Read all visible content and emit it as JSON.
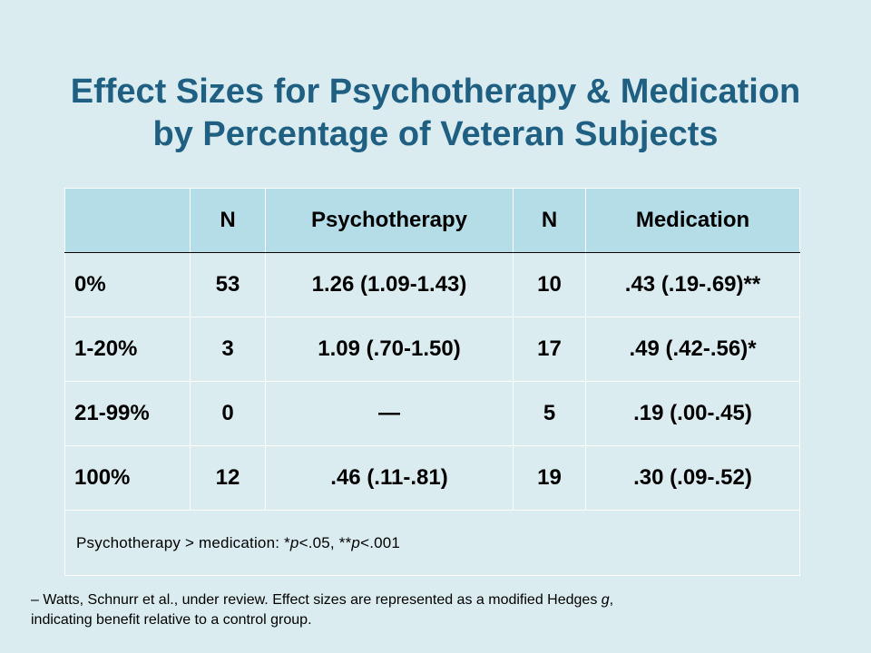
{
  "title": {
    "line1": "Effect Sizes for Psychotherapy & Medication",
    "line2": "by Percentage of Veteran Subjects"
  },
  "table": {
    "headers": [
      "",
      "N",
      "Psychotherapy",
      "N",
      "Medication"
    ],
    "rows": [
      [
        "0%",
        "53",
        "1.26 (1.09-1.43)",
        "10",
        ".43 (.19-.69)**"
      ],
      [
        "1-20%",
        "3",
        "1.09 (.70-1.50)",
        "17",
        ".49 (.42-.56)*"
      ],
      [
        "21-99%",
        "0",
        "—",
        "5",
        ".19 (.00-.45)"
      ],
      [
        "100%",
        "12",
        ".46 (.11-.81)",
        "19",
        ".30 (.09-.52)"
      ]
    ],
    "note": {
      "prefix": "Psychotherapy > medication: *",
      "p1": "p",
      "mid": "<.05, **",
      "p2": "p",
      "suffix": "<.001"
    }
  },
  "footnote": {
    "line1_prefix": "– Watts, Schnurr et al., under review. Effect sizes are represented as a modified Hedges ",
    "line1_g": "g",
    "line1_suffix": ",",
    "line2": "indicating benefit relative to a control group."
  },
  "colors": {
    "background": "#dbecf0",
    "title": "#1f5f82",
    "header_fill": "#b5dde8"
  }
}
